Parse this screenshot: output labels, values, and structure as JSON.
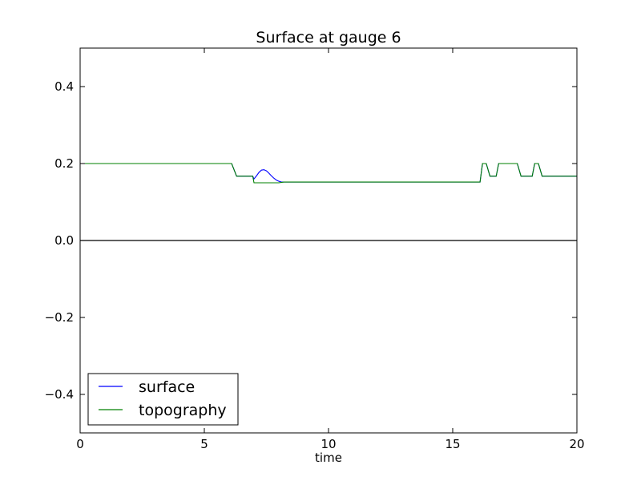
{
  "chart_data": {
    "type": "line",
    "title": "Surface at gauge 6",
    "xlabel": "time",
    "ylabel": "",
    "xlim": [
      0,
      20
    ],
    "ylim": [
      -0.5,
      0.5
    ],
    "xticks": [
      0,
      5,
      10,
      15,
      20
    ],
    "xtick_labels": [
      "0",
      "5",
      "10",
      "15",
      "20"
    ],
    "yticks": [
      -0.4,
      -0.2,
      0.0,
      0.2,
      0.4
    ],
    "ytick_labels": [
      "−0.4",
      "−0.2",
      "0.0",
      "0.2",
      "0.4"
    ],
    "reference_line": {
      "y": 0.0,
      "color": "#000000"
    },
    "grid": false,
    "legend_position": "lower-left",
    "series": [
      {
        "name": "surface",
        "color": "#0000ff",
        "points": [
          [
            0,
            0.2
          ],
          [
            6.1,
            0.2
          ],
          [
            6.3,
            0.167
          ],
          [
            6.95,
            0.167
          ],
          [
            7.0,
            0.16
          ],
          [
            7.1,
            0.168
          ],
          [
            7.2,
            0.177
          ],
          [
            7.3,
            0.183
          ],
          [
            7.4,
            0.184
          ],
          [
            7.5,
            0.181
          ],
          [
            7.6,
            0.175
          ],
          [
            7.7,
            0.168
          ],
          [
            7.8,
            0.162
          ],
          [
            7.9,
            0.157
          ],
          [
            8.0,
            0.154
          ],
          [
            8.1,
            0.152
          ],
          [
            8.2,
            0.152
          ],
          [
            16.1,
            0.152
          ],
          [
            16.2,
            0.2
          ],
          [
            16.35,
            0.2
          ],
          [
            16.5,
            0.167
          ],
          [
            16.75,
            0.167
          ],
          [
            16.85,
            0.2
          ],
          [
            17.6,
            0.2
          ],
          [
            17.75,
            0.167
          ],
          [
            18.2,
            0.167
          ],
          [
            18.3,
            0.2
          ],
          [
            18.45,
            0.2
          ],
          [
            18.6,
            0.167
          ],
          [
            20,
            0.167
          ]
        ]
      },
      {
        "name": "topography",
        "color": "#008000",
        "points": [
          [
            0,
            0.2
          ],
          [
            6.1,
            0.2
          ],
          [
            6.3,
            0.167
          ],
          [
            6.95,
            0.167
          ],
          [
            7.0,
            0.15
          ],
          [
            8.0,
            0.15
          ],
          [
            8.2,
            0.152
          ],
          [
            16.1,
            0.152
          ],
          [
            16.2,
            0.2
          ],
          [
            16.35,
            0.2
          ],
          [
            16.5,
            0.167
          ],
          [
            16.75,
            0.167
          ],
          [
            16.85,
            0.2
          ],
          [
            17.6,
            0.2
          ],
          [
            17.75,
            0.167
          ],
          [
            18.2,
            0.167
          ],
          [
            18.3,
            0.2
          ],
          [
            18.45,
            0.2
          ],
          [
            18.6,
            0.167
          ],
          [
            20,
            0.167
          ]
        ]
      }
    ]
  }
}
